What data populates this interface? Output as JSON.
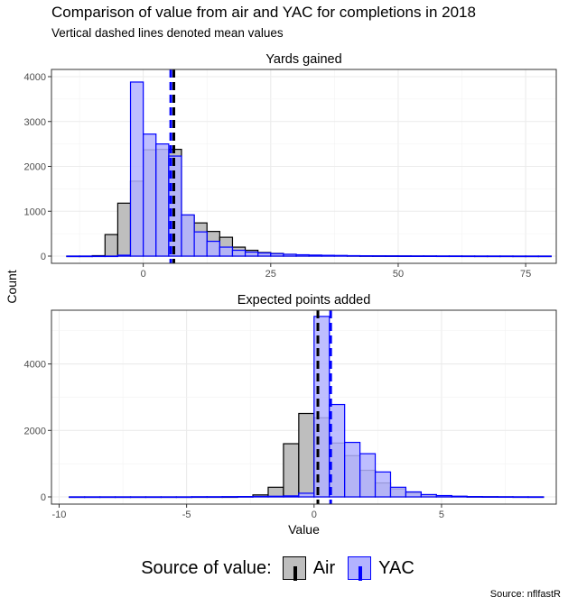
{
  "title": "Comparison of value from air and YAC for completions in 2018",
  "subtitle": "Vertical dashed lines denoted mean values",
  "caption": "Source: nflfastR",
  "legend": {
    "title": "Source of value:",
    "items": [
      {
        "label": "Air",
        "fill": "#bebebe",
        "stroke": "#000000"
      },
      {
        "label": "YAC",
        "fill": "#b3b3ff",
        "stroke": "#0000ff"
      }
    ]
  },
  "chart_data": [
    {
      "type": "histogram",
      "panel_title": "Yards gained",
      "ylabel": "Count",
      "xlim": [
        -18,
        81
      ],
      "ylim": [
        0,
        4000
      ],
      "x_ticks": [
        0,
        25,
        50,
        75
      ],
      "y_ticks": [
        0,
        1000,
        2000,
        3000,
        4000
      ],
      "bin_width": 2.5,
      "grid": true,
      "series": [
        {
          "name": "Air",
          "color": "#000000",
          "fill": "#bebebe",
          "mean": 6.0,
          "bins": [
            [
              -15,
              0
            ],
            [
              -12.5,
              0
            ],
            [
              -10,
              10
            ],
            [
              -7.5,
              480
            ],
            [
              -5,
              1180
            ],
            [
              -2.5,
              1670
            ],
            [
              0,
              2370
            ],
            [
              2.5,
              2380
            ],
            [
              5,
              2380
            ],
            [
              7.5,
              910
            ],
            [
              10,
              740
            ],
            [
              12.5,
              550
            ],
            [
              15,
              420
            ],
            [
              17.5,
              200
            ],
            [
              20,
              130
            ],
            [
              22.5,
              80
            ],
            [
              25,
              60
            ],
            [
              27.5,
              40
            ],
            [
              30,
              25
            ],
            [
              32.5,
              20
            ],
            [
              35,
              15
            ],
            [
              37.5,
              10
            ],
            [
              40,
              8
            ],
            [
              42.5,
              6
            ],
            [
              45,
              5
            ],
            [
              47.5,
              4
            ],
            [
              50,
              3
            ],
            [
              52.5,
              2
            ],
            [
              55,
              2
            ],
            [
              57.5,
              1
            ],
            [
              60,
              1
            ],
            [
              62.5,
              1
            ],
            [
              65,
              0
            ],
            [
              67.5,
              0
            ],
            [
              70,
              0
            ],
            [
              72.5,
              0
            ],
            [
              75,
              0
            ],
            [
              77.5,
              0
            ]
          ]
        },
        {
          "name": "YAC",
          "color": "#0000ff",
          "fill": "#b3b3ff",
          "mean": 5.4,
          "bins": [
            [
              -15,
              0
            ],
            [
              -12.5,
              0
            ],
            [
              -10,
              0
            ],
            [
              -7.5,
              0
            ],
            [
              -5,
              20
            ],
            [
              -2.5,
              3880
            ],
            [
              0,
              2720
            ],
            [
              2.5,
              2500
            ],
            [
              5,
              2230
            ],
            [
              7.5,
              920
            ],
            [
              10,
              540
            ],
            [
              12.5,
              330
            ],
            [
              15,
              200
            ],
            [
              17.5,
              130
            ],
            [
              20,
              90
            ],
            [
              22.5,
              70
            ],
            [
              25,
              55
            ],
            [
              27.5,
              40
            ],
            [
              30,
              30
            ],
            [
              32.5,
              22
            ],
            [
              35,
              18
            ],
            [
              37.5,
              14
            ],
            [
              40,
              10
            ],
            [
              42.5,
              8
            ],
            [
              45,
              6
            ],
            [
              47.5,
              5
            ],
            [
              50,
              4
            ],
            [
              52.5,
              3
            ],
            [
              55,
              3
            ],
            [
              57.5,
              2
            ],
            [
              60,
              2
            ],
            [
              62.5,
              1
            ],
            [
              65,
              1
            ],
            [
              67.5,
              1
            ],
            [
              70,
              1
            ],
            [
              72.5,
              0
            ],
            [
              75,
              0
            ],
            [
              77.5,
              0
            ]
          ]
        }
      ]
    },
    {
      "type": "histogram",
      "panel_title": "Expected points added",
      "xlabel": "Value",
      "ylabel": "Count",
      "xlim": [
        -10.3,
        9.5
      ],
      "ylim": [
        0,
        5400
      ],
      "x_ticks": [
        -10,
        -5,
        0,
        5
      ],
      "y_ticks": [
        0,
        2000,
        4000
      ],
      "bin_width": 0.6,
      "grid": true,
      "series": [
        {
          "name": "Air",
          "color": "#000000",
          "fill": "#bebebe",
          "mean": 0.15,
          "bins": [
            [
              -9.6,
              0
            ],
            [
              -9.0,
              0
            ],
            [
              -8.4,
              0
            ],
            [
              -7.8,
              0
            ],
            [
              -7.2,
              0
            ],
            [
              -6.6,
              0
            ],
            [
              -6.0,
              0
            ],
            [
              -5.4,
              0
            ],
            [
              -4.8,
              0
            ],
            [
              -4.2,
              0
            ],
            [
              -3.6,
              0
            ],
            [
              -3.0,
              10
            ],
            [
              -2.4,
              60
            ],
            [
              -1.8,
              290
            ],
            [
              -1.2,
              1600
            ],
            [
              -0.6,
              2510
            ],
            [
              0,
              2380
            ],
            [
              0.6,
              1620
            ],
            [
              1.2,
              1240
            ],
            [
              1.8,
              800
            ],
            [
              2.4,
              420
            ],
            [
              3.0,
              240
            ],
            [
              3.6,
              120
            ],
            [
              4.2,
              60
            ],
            [
              4.8,
              30
            ],
            [
              5.4,
              15
            ],
            [
              6.0,
              8
            ],
            [
              6.6,
              4
            ],
            [
              7.2,
              2
            ],
            [
              7.8,
              0
            ],
            [
              8.4,
              0
            ]
          ]
        },
        {
          "name": "YAC",
          "color": "#0000ff",
          "fill": "#b3b3ff",
          "mean": 0.65,
          "bins": [
            [
              -9.6,
              0
            ],
            [
              -9.0,
              0
            ],
            [
              -8.4,
              0
            ],
            [
              -7.8,
              0
            ],
            [
              -7.2,
              0
            ],
            [
              -6.6,
              0
            ],
            [
              -6.0,
              0
            ],
            [
              -5.4,
              0
            ],
            [
              -4.8,
              5
            ],
            [
              -4.2,
              5
            ],
            [
              -3.6,
              8
            ],
            [
              -3.0,
              10
            ],
            [
              -2.4,
              15
            ],
            [
              -1.8,
              20
            ],
            [
              -1.2,
              30
            ],
            [
              -0.6,
              110
            ],
            [
              0,
              5430
            ],
            [
              0.6,
              2780
            ],
            [
              1.2,
              1640
            ],
            [
              1.8,
              1300
            ],
            [
              2.4,
              750
            ],
            [
              3.0,
              290
            ],
            [
              3.6,
              150
            ],
            [
              4.2,
              70
            ],
            [
              4.8,
              40
            ],
            [
              5.4,
              20
            ],
            [
              6.0,
              10
            ],
            [
              6.6,
              5
            ],
            [
              7.2,
              3
            ],
            [
              7.8,
              2
            ],
            [
              8.4,
              1
            ]
          ]
        }
      ]
    }
  ]
}
